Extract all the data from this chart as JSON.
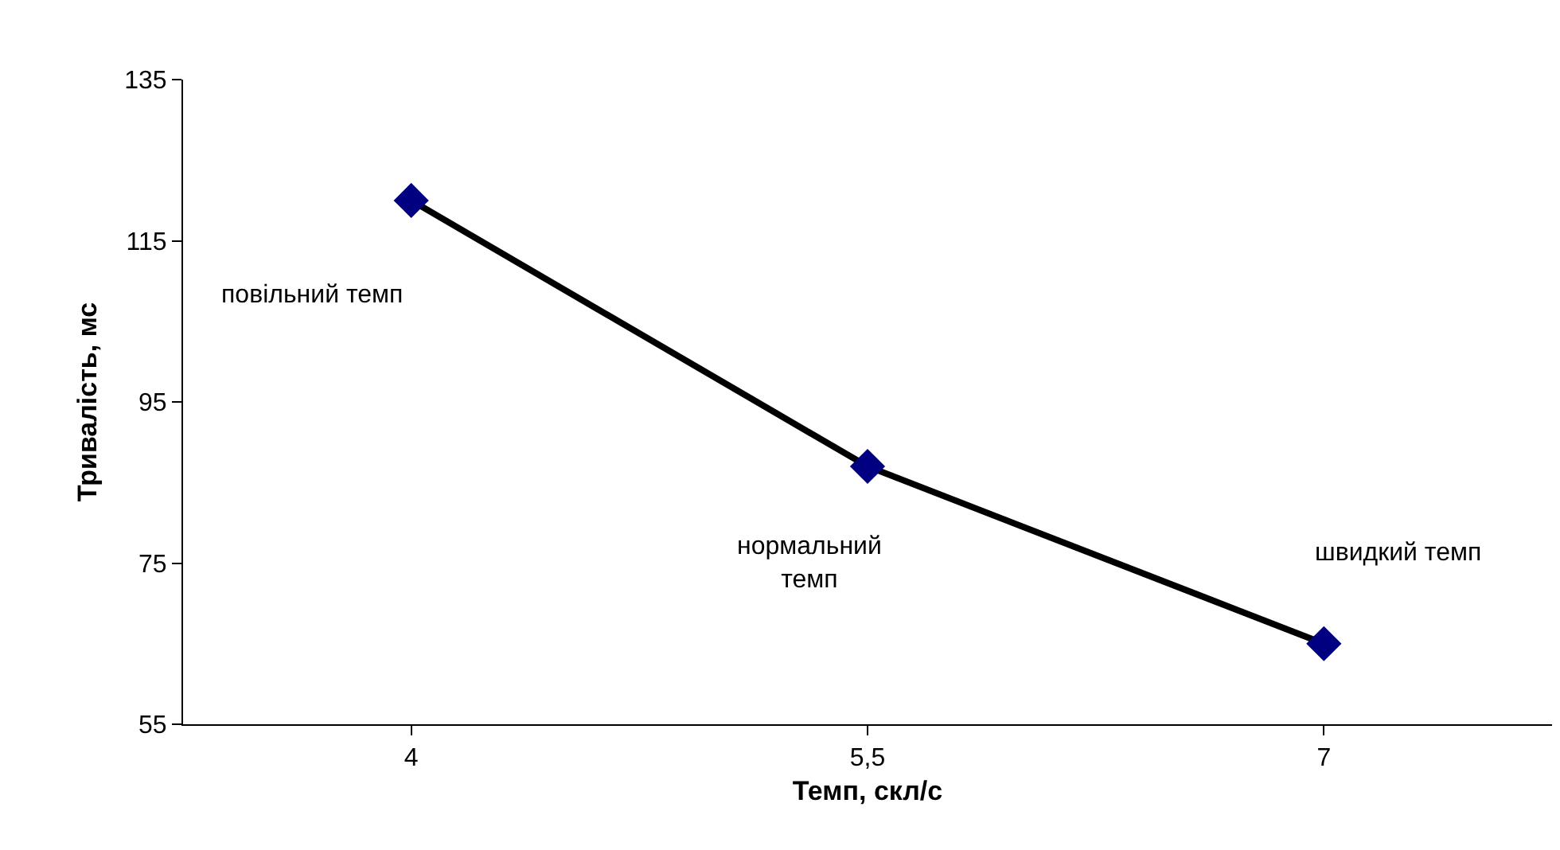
{
  "chart_data": {
    "type": "line",
    "xlabel": "Темп, скл/с",
    "ylabel": "Тривалість, мс",
    "categories": [
      "4",
      "5,5",
      "7"
    ],
    "series": [
      {
        "color": "#000000",
        "colors": [
          "#000080",
          "#000080",
          "#000080"
        ],
        "values": [
          120,
          87,
          65
        ]
      }
    ],
    "marker": "diamond",
    "line_style": "solid",
    "ylim": [
      55,
      135
    ],
    "yticks": [
      55,
      75,
      95,
      115,
      135
    ],
    "grid": false,
    "annotations": [
      "повільний темп",
      "нормальний\nтемп",
      "швидкий темп"
    ]
  }
}
